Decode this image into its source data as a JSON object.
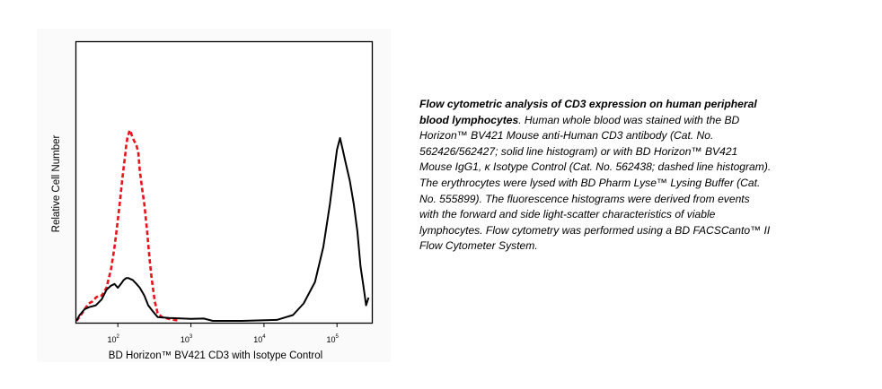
{
  "chart_data": {
    "type": "line",
    "xlabel": "BD Horizon™ BV421 CD3 with Isotype Control",
    "ylabel": "Relative Cell Number",
    "xscale": "log",
    "xlim": [
      27,
      300000
    ],
    "ylim": [
      0,
      1.0
    ],
    "xtick_values": [
      100,
      1000,
      10000,
      100000
    ],
    "xtick_labels": [
      {
        "base": "10",
        "exp": "2"
      },
      {
        "base": "10",
        "exp": "3"
      },
      {
        "base": "10",
        "exp": "4"
      },
      {
        "base": "10",
        "exp": "5"
      }
    ],
    "grid": false,
    "series": [
      {
        "style": "dashed",
        "color": "#e8141c",
        "points": [
          [
            27,
            0.0
          ],
          [
            30,
            0.02
          ],
          [
            35,
            0.06
          ],
          [
            40,
            0.09
          ],
          [
            45,
            0.1
          ],
          [
            50,
            0.12
          ],
          [
            55,
            0.13
          ],
          [
            60,
            0.13
          ],
          [
            65,
            0.15
          ],
          [
            70,
            0.17
          ],
          [
            75,
            0.22
          ],
          [
            80,
            0.26
          ],
          [
            85,
            0.32
          ],
          [
            90,
            0.38
          ],
          [
            95,
            0.45
          ],
          [
            100,
            0.52
          ],
          [
            105,
            0.59
          ],
          [
            110,
            0.66
          ],
          [
            115,
            0.73
          ],
          [
            120,
            0.79
          ],
          [
            125,
            0.84
          ],
          [
            130,
            0.9
          ],
          [
            135,
            0.94
          ],
          [
            140,
            0.96
          ],
          [
            145,
            0.98
          ],
          [
            150,
            0.97
          ],
          [
            160,
            0.94
          ],
          [
            170,
            0.92
          ],
          [
            180,
            0.9
          ],
          [
            190,
            0.87
          ],
          [
            200,
            0.77
          ],
          [
            210,
            0.71
          ],
          [
            220,
            0.65
          ],
          [
            230,
            0.6
          ],
          [
            250,
            0.47
          ],
          [
            270,
            0.33
          ],
          [
            290,
            0.22
          ],
          [
            320,
            0.1
          ],
          [
            350,
            0.04
          ],
          [
            400,
            0.02
          ],
          [
            500,
            0.01
          ],
          [
            700,
            0.0
          ]
        ]
      },
      {
        "style": "solid",
        "color": "#000000",
        "points": [
          [
            27,
            0.0
          ],
          [
            30,
            0.03
          ],
          [
            35,
            0.06
          ],
          [
            40,
            0.07
          ],
          [
            50,
            0.08
          ],
          [
            60,
            0.11
          ],
          [
            70,
            0.16
          ],
          [
            80,
            0.18
          ],
          [
            90,
            0.19
          ],
          [
            100,
            0.17
          ],
          [
            110,
            0.19
          ],
          [
            120,
            0.21
          ],
          [
            130,
            0.22
          ],
          [
            140,
            0.22
          ],
          [
            160,
            0.21
          ],
          [
            180,
            0.19
          ],
          [
            200,
            0.17
          ],
          [
            230,
            0.13
          ],
          [
            260,
            0.08
          ],
          [
            300,
            0.05
          ],
          [
            350,
            0.02
          ],
          [
            500,
            0.015
          ],
          [
            1000,
            0.01
          ],
          [
            1500,
            0.012
          ],
          [
            2000,
            0.0
          ],
          [
            5000,
            0.0
          ],
          [
            15000,
            0.005
          ],
          [
            25000,
            0.03
          ],
          [
            35000,
            0.09
          ],
          [
            50000,
            0.2
          ],
          [
            65000,
            0.38
          ],
          [
            80000,
            0.6
          ],
          [
            90000,
            0.75
          ],
          [
            100000,
            0.88
          ],
          [
            110000,
            0.94
          ],
          [
            120000,
            0.88
          ],
          [
            130000,
            0.82
          ],
          [
            150000,
            0.72
          ],
          [
            170000,
            0.6
          ],
          [
            190000,
            0.46
          ],
          [
            210000,
            0.28
          ],
          [
            230000,
            0.18
          ],
          [
            250000,
            0.08
          ],
          [
            270000,
            0.12
          ]
        ]
      }
    ]
  },
  "caption": {
    "title": "Flow cytometric analysis of CD3 expression on human peripheral blood lymphocytes",
    "body": ". Human whole blood was stained with the BD Horizon™ BV421 Mouse anti-Human CD3 antibody (Cat. No. 562426/562427; solid line histogram) or with BD Horizon™ BV421 Mouse IgG1, κ Isotype Control (Cat. No. 562438; dashed line histogram). The erythrocytes were lysed with BD Pharm Lyse™ Lysing Buffer (Cat. No. 555899). The fluorescence histograms were derived from events with the forward and side light-scatter characteristics of viable lymphocytes. Flow cytometry was performed using a BD FACSCanto™ II Flow Cytometer System."
  }
}
